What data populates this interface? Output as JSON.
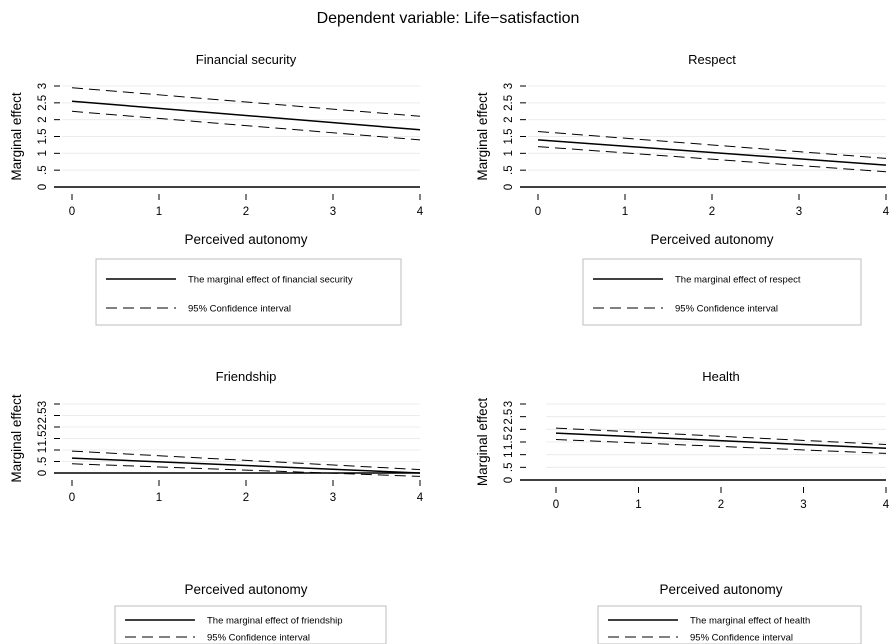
{
  "figure_title": "Dependent variable: Life−satisfaction",
  "chart_data": [
    {
      "type": "line",
      "title": "Financial security",
      "xlabel": "Perceived autonomy",
      "ylabel": "Marginal effect",
      "x_ticks": [
        0,
        1,
        2,
        3,
        4
      ],
      "x_tick_labels": [
        "0",
        "1",
        "2",
        "3",
        "4"
      ],
      "y_ticks": [
        0,
        0.5,
        1,
        1.5,
        2,
        2.5,
        3
      ],
      "y_tick_labels": [
        "0",
        ".5",
        "1",
        "1.5",
        "2",
        "2.5",
        "3"
      ],
      "xlim": [
        0,
        4
      ],
      "ylim": [
        0,
        3
      ],
      "reference_line_y": 0,
      "series": [
        {
          "name": "The marginal effect of financial security",
          "style": "solid",
          "x": [
            0,
            4
          ],
          "y": [
            2.55,
            1.7
          ]
        },
        {
          "name": "95% Confidence interval",
          "style": "dashed",
          "x": [
            0,
            4
          ],
          "y": [
            2.95,
            2.1
          ]
        },
        {
          "name": "95% Confidence interval",
          "style": "dashed",
          "x": [
            0,
            4
          ],
          "y": [
            2.25,
            1.4
          ]
        }
      ],
      "legend": [
        "The marginal effect of financial security",
        "95% Confidence interval"
      ],
      "legend_position": "bottom",
      "grid": true
    },
    {
      "type": "line",
      "title": "Respect",
      "xlabel": "Perceived autonomy",
      "ylabel": "Marginal effect",
      "x_ticks": [
        0,
        1,
        2,
        3,
        4
      ],
      "x_tick_labels": [
        "0",
        "1",
        "2",
        "3",
        "4"
      ],
      "y_ticks": [
        0,
        0.5,
        1,
        1.5,
        2,
        2.5,
        3
      ],
      "y_tick_labels": [
        "0",
        ".5",
        "1",
        "1.5",
        "2",
        "2.5",
        "3"
      ],
      "xlim": [
        0,
        4
      ],
      "ylim": [
        0,
        3
      ],
      "reference_line_y": 0,
      "series": [
        {
          "name": "The marginal effect of respect",
          "style": "solid",
          "x": [
            0,
            4
          ],
          "y": [
            1.4,
            0.65
          ]
        },
        {
          "name": "95% Confidence interval",
          "style": "dashed",
          "x": [
            0,
            4
          ],
          "y": [
            1.65,
            0.85
          ]
        },
        {
          "name": "95% Confidence interval",
          "style": "dashed",
          "x": [
            0,
            4
          ],
          "y": [
            1.2,
            0.45
          ]
        }
      ],
      "legend": [
        "The marginal effect of respect",
        "95% Confidence interval"
      ],
      "legend_position": "bottom",
      "grid": true
    },
    {
      "type": "line",
      "title": "Friendship",
      "xlabel": "Perceived autonomy",
      "ylabel": "Marginal effect",
      "x_ticks": [
        0,
        1,
        2,
        3,
        4
      ],
      "x_tick_labels": [
        "0",
        "1",
        "2",
        "3",
        "4"
      ],
      "y_ticks": [
        0,
        0.5,
        1,
        1.5,
        2,
        2.5,
        3
      ],
      "y_tick_labels": [
        "0",
        ".5",
        "1",
        "1.5",
        "2",
        "2.5",
        "3"
      ],
      "xlim": [
        0,
        4
      ],
      "ylim": [
        0,
        3
      ],
      "reference_line_y": 0,
      "series": [
        {
          "name": "The marginal effect of friendship",
          "style": "solid",
          "x": [
            0,
            4
          ],
          "y": [
            0.65,
            0.0
          ]
        },
        {
          "name": "95% Confidence interval",
          "style": "dashed",
          "x": [
            0,
            4
          ],
          "y": [
            0.95,
            0.15
          ]
        },
        {
          "name": "95% Confidence interval",
          "style": "dashed",
          "x": [
            0,
            4
          ],
          "y": [
            0.4,
            -0.15
          ]
        }
      ],
      "legend": [
        "The marginal effect of friendship",
        "95% Confidence interval"
      ],
      "legend_position": "bottom",
      "grid": true
    },
    {
      "type": "line",
      "title": "Health",
      "xlabel": "Perceived autonomy",
      "ylabel": "Marginal effect",
      "x_ticks": [
        0,
        1,
        2,
        3,
        4
      ],
      "x_tick_labels": [
        "0",
        "1",
        "2",
        "3",
        "4"
      ],
      "y_ticks": [
        0,
        0.5,
        1,
        1.5,
        2,
        2.5,
        3
      ],
      "y_tick_labels": [
        "0",
        ".5",
        "1",
        "1.5",
        "2",
        "2.5",
        "3"
      ],
      "xlim": [
        0,
        4
      ],
      "ylim": [
        0,
        3
      ],
      "reference_line_y": 0,
      "series": [
        {
          "name": "The marginal effect of health",
          "style": "solid",
          "x": [
            0,
            4
          ],
          "y": [
            1.85,
            1.25
          ]
        },
        {
          "name": "95% Confidence interval",
          "style": "dashed",
          "x": [
            0,
            4
          ],
          "y": [
            2.05,
            1.4
          ]
        },
        {
          "name": "95% Confidence interval",
          "style": "dashed",
          "x": [
            0,
            4
          ],
          "y": [
            1.6,
            1.05
          ]
        }
      ],
      "legend": [
        "The marginal effect of health",
        "95% Confidence interval"
      ],
      "legend_position": "bottom",
      "grid": true
    }
  ]
}
